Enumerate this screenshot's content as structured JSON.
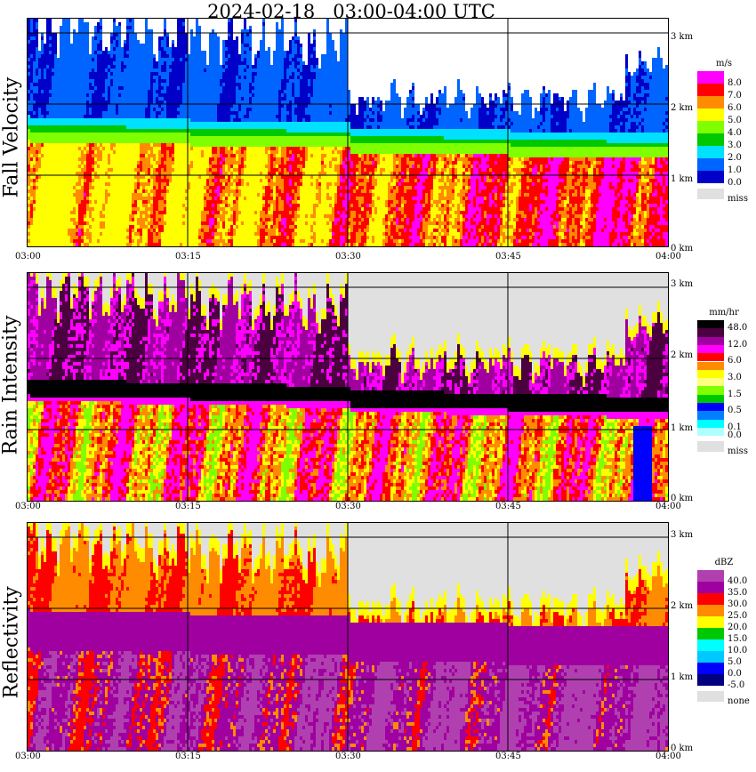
{
  "title": "2024-02-18   03:00-04:00 UTC",
  "x_ticks": [
    "03:00",
    "03:15",
    "03:30",
    "03:45",
    "04:00"
  ],
  "height_ticks": [
    "3 km",
    "2 km",
    "1 km",
    "0 km"
  ],
  "panels": [
    {
      "id": "fall-velocity",
      "ylabel": "Fall Velocity",
      "legend_title": "m/s",
      "legend": [
        {
          "label": "8.0",
          "color": "#ff00ff"
        },
        {
          "label": "7.0",
          "color": "#ff0000"
        },
        {
          "label": "6.0",
          "color": "#ff8c00"
        },
        {
          "label": "5.0",
          "color": "#ffff00"
        },
        {
          "label": "4.0",
          "color": "#80ff00"
        },
        {
          "label": "3.0",
          "color": "#00c800"
        },
        {
          "label": "2.0",
          "color": "#00e0ff"
        },
        {
          "label": "1.0",
          "color": "#0064ff"
        },
        {
          "label": "0.0",
          "color": "#0000c8"
        },
        {
          "label": "miss",
          "color": "#e0e0e0"
        }
      ]
    },
    {
      "id": "rain-intensity",
      "ylabel": "Rain Intensity",
      "legend_title": "mm/hr",
      "legend": [
        {
          "label": "48.0",
          "color": "#000000"
        },
        {
          "label": "",
          "color": "#4b0040"
        },
        {
          "label": "12.0",
          "color": "#a000a0"
        },
        {
          "label": "",
          "color": "#ff00ff"
        },
        {
          "label": "6.0",
          "color": "#ff0000"
        },
        {
          "label": "",
          "color": "#ff8c00"
        },
        {
          "label": "3.0",
          "color": "#ffff00"
        },
        {
          "label": "",
          "color": "#ffff80"
        },
        {
          "label": "1.5",
          "color": "#80ff00"
        },
        {
          "label": "",
          "color": "#00c800"
        },
        {
          "label": "0.5",
          "color": "#0000ff"
        },
        {
          "label": "",
          "color": "#0080ff"
        },
        {
          "label": "0.1",
          "color": "#00ffff"
        },
        {
          "label": "0.0",
          "color": "#b0ffff"
        },
        {
          "label": "miss",
          "color": "#e0e0e0"
        }
      ]
    },
    {
      "id": "reflectivity",
      "ylabel": "Reflectivity",
      "legend_title": "dBZ",
      "legend": [
        {
          "label": "40.0",
          "color": "#b040b0"
        },
        {
          "label": "35.0",
          "color": "#a000a0"
        },
        {
          "label": "30.0",
          "color": "#ff0000"
        },
        {
          "label": "25.0",
          "color": "#ff8c00"
        },
        {
          "label": "20.0",
          "color": "#ffff00"
        },
        {
          "label": "15.0",
          "color": "#00c800"
        },
        {
          "label": "10.0",
          "color": "#00ffff"
        },
        {
          "label": "5.0",
          "color": "#00c8ff"
        },
        {
          "label": "0.0",
          "color": "#0000ff"
        },
        {
          "label": "-5.0",
          "color": "#000080"
        },
        {
          "label": "none",
          "color": "#e0e0e0"
        }
      ]
    }
  ],
  "chart_data": {
    "type": "heatmap",
    "title": "2024-02-18   03:00-04:00 UTC",
    "x_range": [
      "03:00",
      "04:00"
    ],
    "y_range_km": [
      0,
      3.2
    ],
    "grid": true,
    "melting_layer_height_km": {
      "03:00": 1.55,
      "03:30": 1.45,
      "03:45": 1.4,
      "04:00": 1.3
    },
    "panels": [
      "Fall Velocity",
      "Rain Intensity",
      "Reflectivity"
    ]
  }
}
